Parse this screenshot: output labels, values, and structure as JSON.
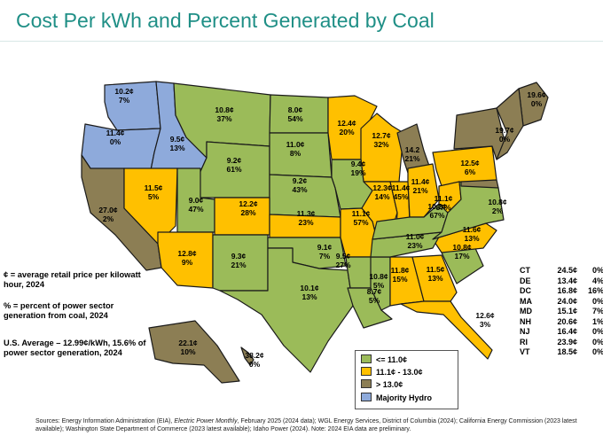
{
  "title": "Cost Per kWh and Percent Generated by Coal",
  "colors": {
    "green": "#9bbb59",
    "gold": "#ffc000",
    "brown": "#8c7e54",
    "hydro": "#8eaadb",
    "title": "#1f8f86"
  },
  "states": {
    "WA": {
      "price": "10.2¢",
      "coal": "7%",
      "cat": "hydro"
    },
    "OR": {
      "price": "11.4¢",
      "coal": "0%",
      "cat": "hydro"
    },
    "ID": {
      "price": "9.5¢",
      "coal": "13%",
      "cat": "hydro"
    },
    "MT": {
      "price": "10.8¢",
      "coal": "37%",
      "cat": "green"
    },
    "ND": {
      "price": "8.0¢",
      "coal": "54%",
      "cat": "green"
    },
    "SD": {
      "price": "11.0¢",
      "coal": "8%",
      "cat": "green"
    },
    "MN": {
      "price": "12.4¢",
      "coal": "20%",
      "cat": "gold"
    },
    "WI": {
      "price": "12.7¢",
      "coal": "32%",
      "cat": "gold"
    },
    "MI": {
      "price": "14.2",
      "coal": "21%",
      "cat": "brown"
    },
    "WY": {
      "price": "9.2¢",
      "coal": "61%",
      "cat": "green"
    },
    "NE": {
      "price": "9.2¢",
      "coal": "43%",
      "cat": "green"
    },
    "IA": {
      "price": "9.4¢",
      "coal": "19%",
      "cat": "green"
    },
    "IL": {
      "price": "12.3¢",
      "coal": "14%",
      "cat": "gold"
    },
    "IN": {
      "price": "11.4¢",
      "coal": "45%",
      "cat": "gold"
    },
    "OH": {
      "price": "11.4¢",
      "coal": "21%",
      "cat": "gold"
    },
    "PA": {
      "price": "12.5¢",
      "coal": "6%",
      "cat": "gold"
    },
    "NY": {
      "price": "19.7¢",
      "coal": "0%",
      "cat": "brown"
    },
    "ME": {
      "price": "19.6¢",
      "coal": "0%",
      "cat": "brown"
    },
    "CA": {
      "price": "27.0¢",
      "coal": "2%",
      "cat": "brown"
    },
    "NV": {
      "price": "11.5¢",
      "coal": "5%",
      "cat": "gold"
    },
    "UT": {
      "price": "9.0¢",
      "coal": "47%",
      "cat": "green"
    },
    "CO": {
      "price": "12.2¢",
      "coal": "28%",
      "cat": "gold"
    },
    "KS": {
      "price": "11.3¢",
      "coal": "23%",
      "cat": "gold"
    },
    "MO": {
      "price": "11.1¢",
      "coal": "57%",
      "cat": "gold"
    },
    "WV": {
      "price": "11.1¢",
      "coal": "87%",
      "cat": "gold"
    },
    "VA": {
      "price": "10.8¢",
      "coal": "2%",
      "cat": "green"
    },
    "KY": {
      "price": "10.2¢",
      "coal": "67%",
      "cat": "green"
    },
    "TN": {
      "price": "11.0¢",
      "coal": "23%",
      "cat": "green"
    },
    "NC": {
      "price": "11.6¢",
      "coal": "13%",
      "cat": "gold"
    },
    "SC": {
      "price": "10.8¢",
      "coal": "17%",
      "cat": "green"
    },
    "AZ": {
      "price": "12.8¢",
      "coal": "9%",
      "cat": "gold"
    },
    "NM": {
      "price": "9.3¢",
      "coal": "21%",
      "cat": "green"
    },
    "OK": {
      "price": "9.1¢",
      "coal": "7%",
      "cat": "green"
    },
    "AR": {
      "price": "9.5¢",
      "coal": "27%",
      "cat": "green"
    },
    "TX": {
      "price": "10.1¢",
      "coal": "13%",
      "cat": "green"
    },
    "MS": {
      "price": "10.8¢",
      "coal": "5%",
      "cat": "green"
    },
    "AL": {
      "price": "11.8¢",
      "coal": "15%",
      "cat": "gold"
    },
    "GA": {
      "price": "11.5¢",
      "coal": "13%",
      "cat": "gold"
    },
    "LA": {
      "price": "8.7¢",
      "coal": "5%",
      "cat": "green"
    },
    "FL": {
      "price": "12.6¢",
      "coal": "3%",
      "cat": "gold"
    },
    "AK": {
      "price": "22.1¢",
      "coal": "10%",
      "cat": "brown"
    },
    "HI": {
      "price": "38.2¢",
      "coal": "0%",
      "cat": "brown"
    }
  },
  "notes": {
    "definition": "¢ = average retail price per kilowatt hour, 2024",
    "percent": "% = percent of power sector generation from coal, 2024",
    "average": "U.S. Average – 12.99¢/kWh, 15.6% of power sector generation, 2024"
  },
  "legend": {
    "green": "<= 11.0¢",
    "gold": "11.1¢ - 13.0¢",
    "brown": "> 13.0¢",
    "hydro": "Majority Hydro"
  },
  "small_states": [
    {
      "state": "CT",
      "price": "24.5¢",
      "coal": "0%"
    },
    {
      "state": "DE",
      "price": "13.4¢",
      "coal": "4%"
    },
    {
      "state": "DC",
      "price": "16.8¢",
      "coal": "16%"
    },
    {
      "state": "MA",
      "price": "24.0¢",
      "coal": "0%"
    },
    {
      "state": "MD",
      "price": "15.1¢",
      "coal": "7%"
    },
    {
      "state": "NH",
      "price": "20.6¢",
      "coal": "1%"
    },
    {
      "state": "NJ",
      "price": "16.4¢",
      "coal": "0%"
    },
    {
      "state": "RI",
      "price": "23.9¢",
      "coal": "0%"
    },
    {
      "state": "VT",
      "price": "18.5¢",
      "coal": "0%"
    }
  ],
  "source": {
    "part1": "Sources: Energy Information Administration (EIA), ",
    "italic": "Electric Power Monthly",
    "part2": ", February 2025 (2024 data); WGL Energy Services, District of Columbia (2024); California Energy Commission (2023 latest available); Washington State Department of Commerce (2023 latest available); Idaho Power (2024). Note: 2024 EIA data are preliminary."
  }
}
